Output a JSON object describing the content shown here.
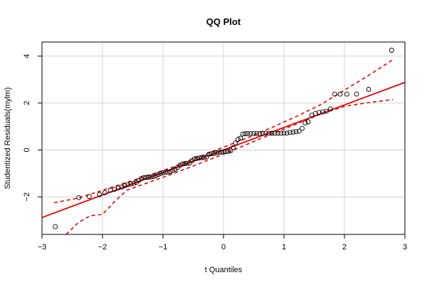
{
  "chart_data": {
    "type": "scatter",
    "title": "QQ Plot",
    "xlabel": "t Quantiles",
    "ylabel": "Studentized Residuals(mylm)",
    "xlim": [
      -3,
      3
    ],
    "ylim": [
      -3.6,
      4.6
    ],
    "x_ticks": [
      -3,
      -2,
      -1,
      0,
      1,
      2,
      3
    ],
    "x_tick_labels": [
      "−3",
      "−2",
      "−1",
      "0",
      "1",
      "2",
      "3"
    ],
    "y_ticks": [
      -2,
      0,
      2,
      4
    ],
    "y_tick_labels": [
      "−2",
      "0",
      "2",
      "4"
    ],
    "grid": true,
    "colors": {
      "points": "#000000",
      "fit_line": "#ee0000",
      "envelope": "#ee0000",
      "grid": "#d3d3d3"
    },
    "series": [
      {
        "values": [
          [
            -2.78,
            -3.27
          ],
          [
            -2.39,
            -2.03
          ],
          [
            -2.22,
            -1.98
          ],
          [
            -2.05,
            -1.9
          ],
          [
            -1.96,
            -1.82
          ],
          [
            -1.87,
            -1.72
          ],
          [
            -1.8,
            -1.68
          ],
          [
            -1.74,
            -1.62
          ],
          [
            -1.68,
            -1.58
          ],
          [
            -1.63,
            -1.52
          ],
          [
            -1.58,
            -1.48
          ],
          [
            -1.53,
            -1.45
          ],
          [
            -1.48,
            -1.42
          ],
          [
            -1.44,
            -1.38
          ],
          [
            -1.4,
            -1.3
          ],
          [
            -1.36,
            -1.22
          ],
          [
            -1.32,
            -1.18
          ],
          [
            -1.28,
            -1.17
          ],
          [
            -1.24,
            -1.16
          ],
          [
            -1.2,
            -1.15
          ],
          [
            -1.16,
            -1.13
          ],
          [
            -1.12,
            -1.1
          ],
          [
            -1.08,
            -1.05
          ],
          [
            -1.04,
            -1.0
          ],
          [
            -1.0,
            -0.97
          ],
          [
            -0.96,
            -0.95
          ],
          [
            -0.92,
            -0.94
          ],
          [
            -0.88,
            -0.92
          ],
          [
            -0.84,
            -0.88
          ],
          [
            -0.8,
            -0.82
          ],
          [
            -0.76,
            -0.75
          ],
          [
            -0.72,
            -0.65
          ],
          [
            -0.68,
            -0.6
          ],
          [
            -0.64,
            -0.58
          ],
          [
            -0.6,
            -0.57
          ],
          [
            -0.56,
            -0.56
          ],
          [
            -0.52,
            -0.45
          ],
          [
            -0.48,
            -0.38
          ],
          [
            -0.44,
            -0.36
          ],
          [
            -0.4,
            -0.34
          ],
          [
            -0.36,
            -0.33
          ],
          [
            -0.32,
            -0.32
          ],
          [
            -0.28,
            -0.3
          ],
          [
            -0.24,
            -0.18
          ],
          [
            -0.2,
            -0.16
          ],
          [
            -0.16,
            -0.15
          ],
          [
            -0.12,
            -0.12
          ],
          [
            -0.08,
            -0.1
          ],
          [
            -0.04,
            -0.09
          ],
          [
            0.0,
            -0.08
          ],
          [
            0.04,
            -0.07
          ],
          [
            0.08,
            -0.06
          ],
          [
            0.12,
            -0.03
          ],
          [
            0.16,
            0.1
          ],
          [
            0.2,
            0.3
          ],
          [
            0.24,
            0.45
          ],
          [
            0.28,
            0.5
          ],
          [
            0.32,
            0.68
          ],
          [
            0.36,
            0.69
          ],
          [
            0.4,
            0.7
          ],
          [
            0.45,
            0.7
          ],
          [
            0.5,
            0.7
          ],
          [
            0.55,
            0.7
          ],
          [
            0.6,
            0.7
          ],
          [
            0.65,
            0.71
          ],
          [
            0.7,
            0.71
          ],
          [
            0.75,
            0.71
          ],
          [
            0.8,
            0.71
          ],
          [
            0.85,
            0.71
          ],
          [
            0.9,
            0.71
          ],
          [
            0.95,
            0.71
          ],
          [
            1.0,
            0.72
          ],
          [
            1.05,
            0.72
          ],
          [
            1.1,
            0.75
          ],
          [
            1.15,
            0.76
          ],
          [
            1.2,
            0.78
          ],
          [
            1.25,
            0.8
          ],
          [
            1.3,
            0.92
          ],
          [
            1.35,
            1.15
          ],
          [
            1.4,
            1.2
          ],
          [
            1.46,
            1.48
          ],
          [
            1.52,
            1.55
          ],
          [
            1.58,
            1.6
          ],
          [
            1.64,
            1.62
          ],
          [
            1.7,
            1.65
          ],
          [
            1.77,
            1.75
          ],
          [
            1.84,
            2.38
          ],
          [
            1.93,
            2.38
          ],
          [
            2.04,
            2.38
          ],
          [
            2.2,
            2.38
          ],
          [
            2.4,
            2.58
          ],
          [
            2.78,
            4.25
          ]
        ]
      }
    ],
    "fit_line": {
      "intercept": 0.0,
      "slope": 0.96
    },
    "envelope_upper": [
      [
        -2.8,
        -2.25
      ],
      [
        -2.4,
        -2.05
      ],
      [
        -2.0,
        -1.72
      ],
      [
        -1.6,
        -1.38
      ],
      [
        -1.2,
        -1.05
      ],
      [
        -0.8,
        -0.7
      ],
      [
        -0.4,
        -0.28
      ],
      [
        0.0,
        0.12
      ],
      [
        0.4,
        0.52
      ],
      [
        0.8,
        0.96
      ],
      [
        1.2,
        1.42
      ],
      [
        1.6,
        1.92
      ],
      [
        2.0,
        2.55
      ],
      [
        2.4,
        3.18
      ],
      [
        2.8,
        3.85
      ]
    ],
    "envelope_lower": [
      [
        -2.6,
        -3.6
      ],
      [
        -2.4,
        -3.1
      ],
      [
        -2.2,
        -2.8
      ],
      [
        -2.0,
        -2.75
      ],
      [
        -1.8,
        -2.2
      ],
      [
        -1.6,
        -1.72
      ],
      [
        -1.2,
        -1.35
      ],
      [
        -0.8,
        -0.98
      ],
      [
        -0.4,
        -0.58
      ],
      [
        0.0,
        -0.18
      ],
      [
        0.4,
        0.25
      ],
      [
        0.8,
        0.68
      ],
      [
        1.2,
        1.1
      ],
      [
        1.6,
        1.52
      ],
      [
        2.0,
        1.86
      ],
      [
        2.4,
        2.02
      ],
      [
        2.8,
        2.15
      ]
    ]
  }
}
